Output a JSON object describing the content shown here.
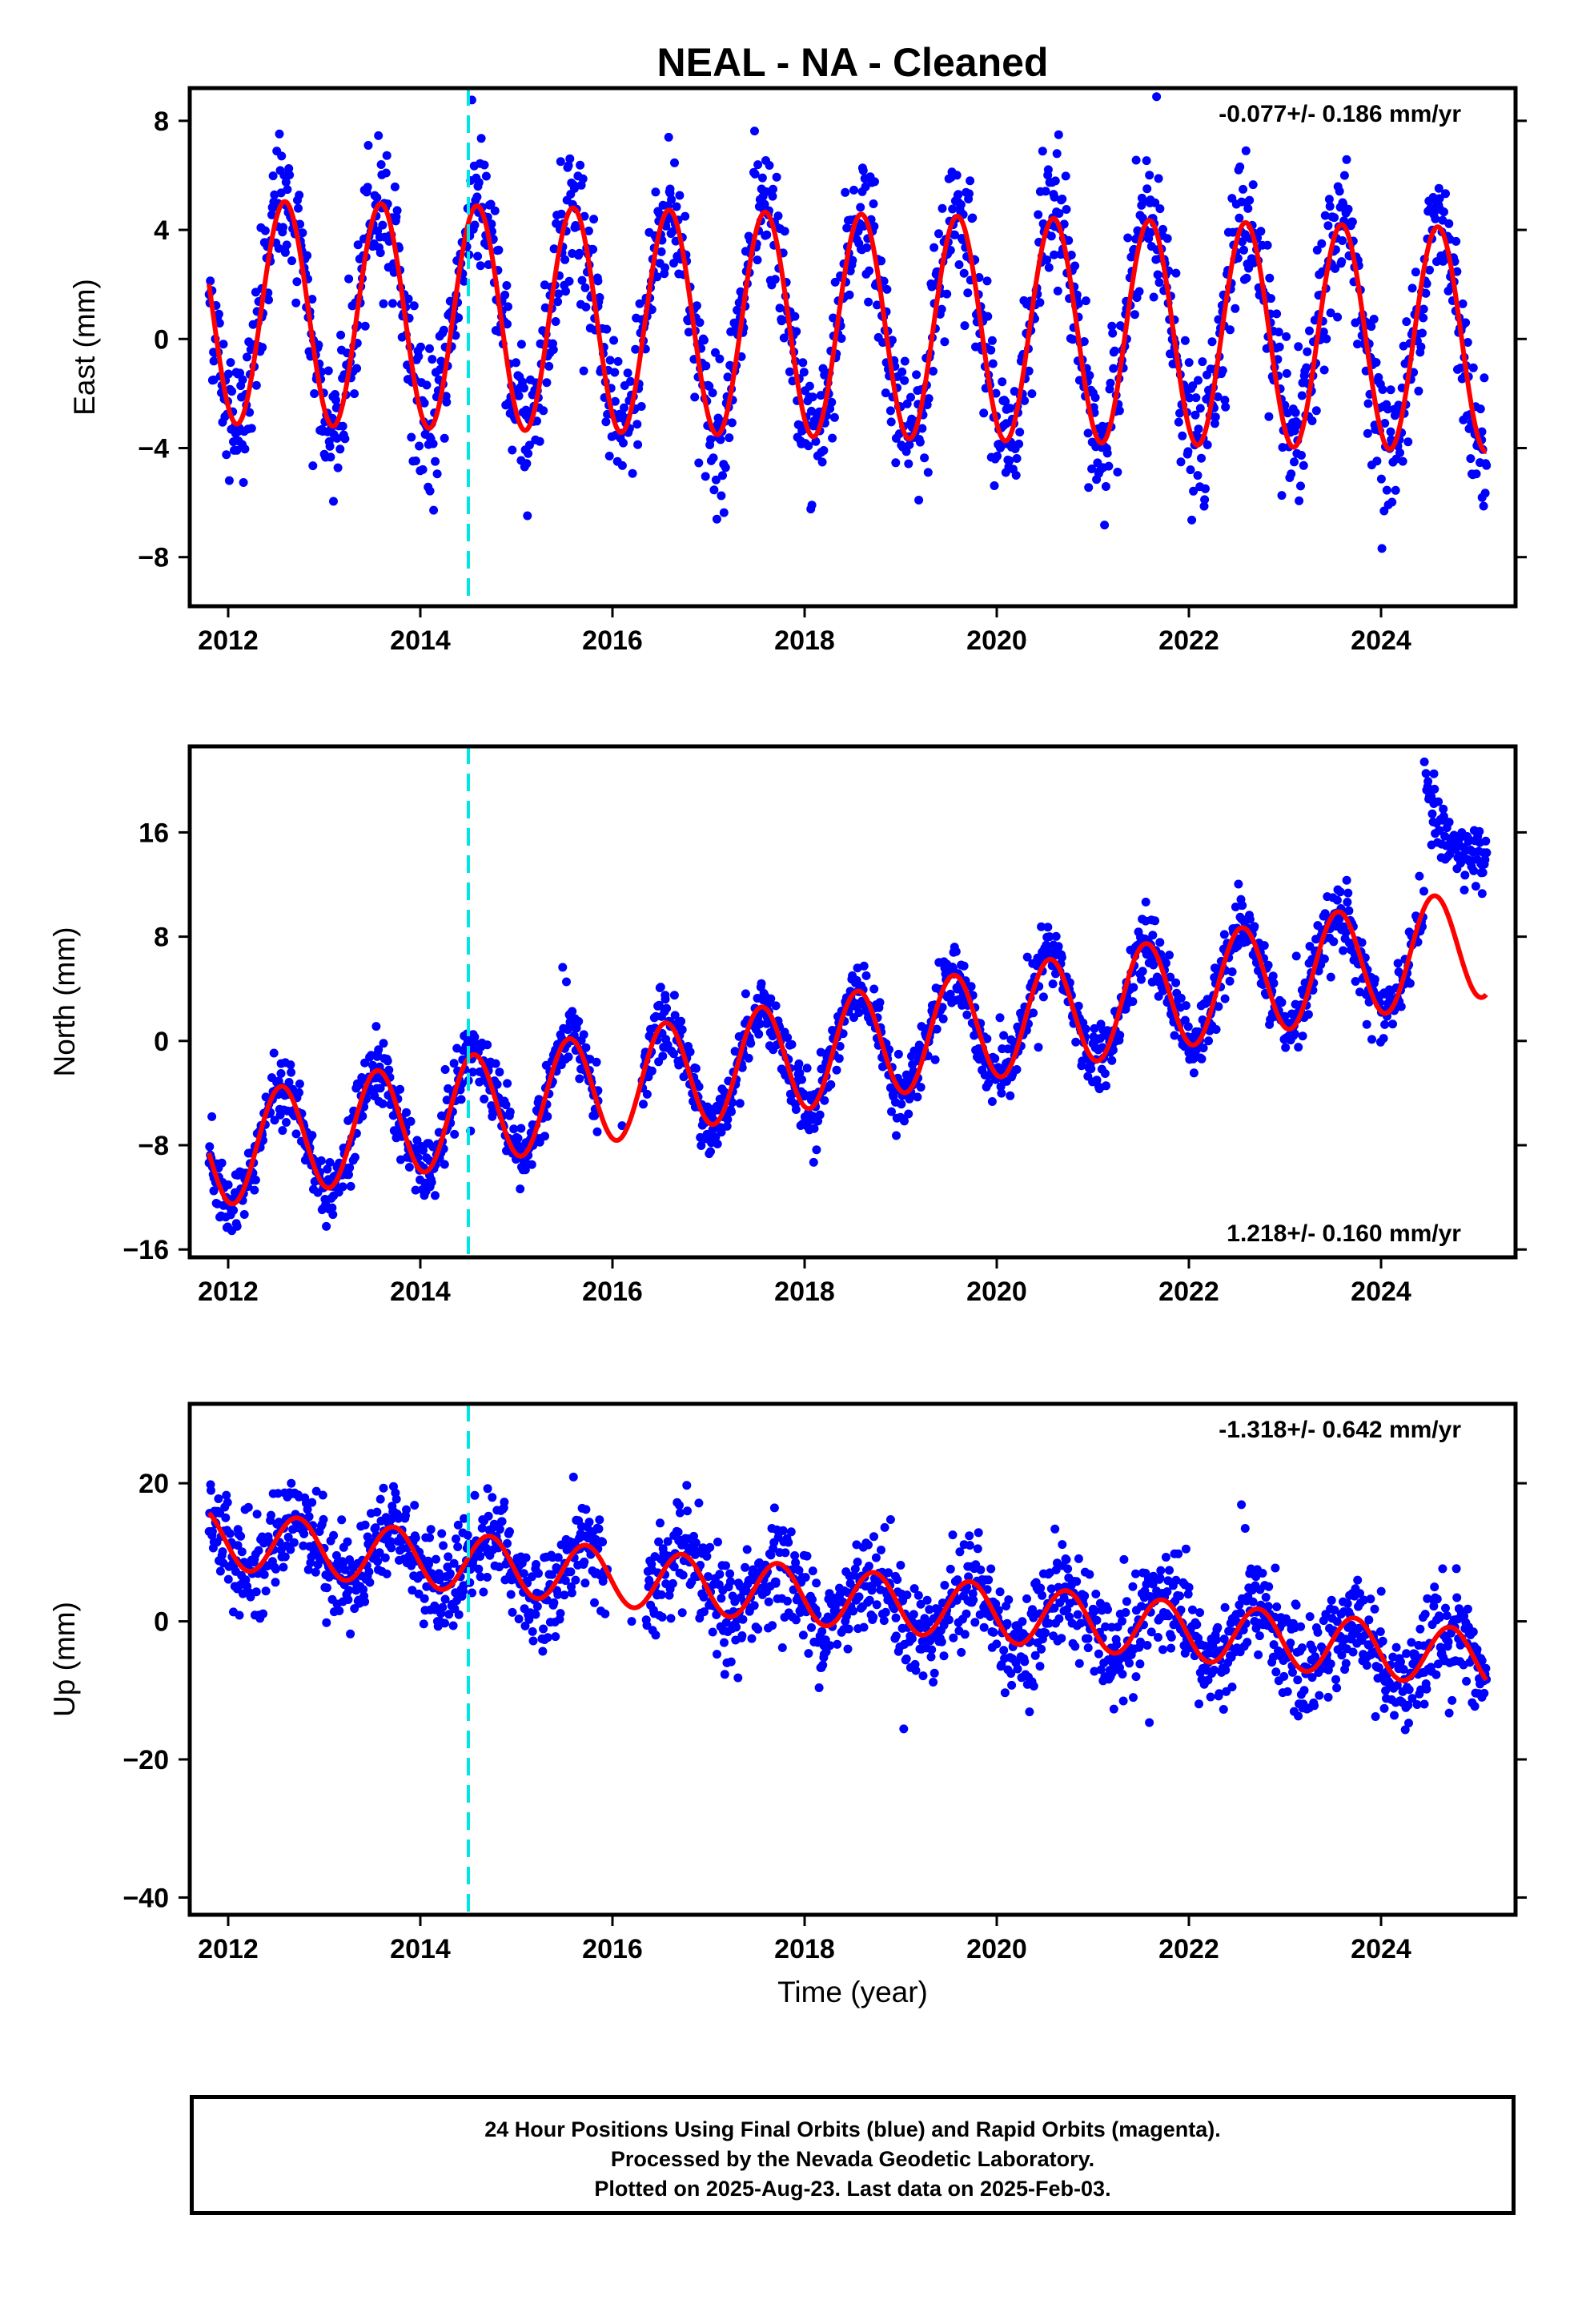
{
  "figure": {
    "title": "NEAL  - NA - Cleaned",
    "xlabel": "Time (year)",
    "x_ticks": [
      2012,
      2014,
      2016,
      2018,
      2020,
      2022,
      2024
    ],
    "colors": {
      "points": "#0000ff",
      "fit": "#ff0000",
      "event_line": "#00e5e5"
    }
  },
  "chart_data": [
    {
      "type": "scatter",
      "ylabel": "East (mm)",
      "rate_label": "-0.077+/- 0.186 mm/yr",
      "rate_position": "top-right",
      "xlim": [
        2011.6,
        2025.4
      ],
      "ylim": [
        -9.8,
        9.2
      ],
      "y_ticks": [
        -8,
        -4,
        0,
        4,
        8
      ],
      "event_line_x": 2014.5,
      "data_range": [
        2011.8,
        2025.1
      ],
      "fit": {
        "offset": 1.0,
        "trend": -0.077,
        "amplitude": 4.1,
        "phase_year": 0.59
      },
      "series": [
        {
          "values": [
            [
              2011.85,
              -1.5
            ],
            [
              2012.1,
              -3.4
            ],
            [
              2012.35,
              0.8
            ],
            [
              2012.6,
              4.9
            ],
            [
              2012.85,
              1.0
            ],
            [
              2013.1,
              -3.5
            ],
            [
              2013.35,
              0.5
            ],
            [
              2013.6,
              4.8
            ],
            [
              2013.85,
              0.8
            ],
            [
              2014.1,
              -3.6
            ],
            [
              2014.35,
              0.9
            ],
            [
              2014.6,
              5.6
            ],
            [
              2014.85,
              1.4
            ],
            [
              2015.1,
              -2.8
            ],
            [
              2015.35,
              1.6
            ],
            [
              2015.6,
              5.6
            ],
            [
              2015.85,
              1.2
            ],
            [
              2016.1,
              -2.9
            ],
            [
              2016.35,
              1.5
            ],
            [
              2016.6,
              5.5
            ],
            [
              2016.85,
              1.1
            ],
            [
              2017.1,
              -2.9
            ],
            [
              2017.35,
              1.5
            ],
            [
              2017.6,
              5.4
            ],
            [
              2017.85,
              1.0
            ],
            [
              2018.1,
              -3.0
            ],
            [
              2018.35,
              1.4
            ],
            [
              2018.6,
              5.4
            ],
            [
              2018.85,
              1.0
            ],
            [
              2019.1,
              -3.1
            ],
            [
              2019.35,
              1.3
            ],
            [
              2019.6,
              5.3
            ],
            [
              2019.85,
              0.9
            ],
            [
              2020.1,
              -3.1
            ],
            [
              2020.35,
              1.2
            ],
            [
              2020.6,
              5.2
            ],
            [
              2020.85,
              0.8
            ],
            [
              2021.1,
              -3.2
            ],
            [
              2021.35,
              1.1
            ],
            [
              2021.6,
              5.1
            ],
            [
              2021.85,
              0.7
            ],
            [
              2022.1,
              -3.3
            ],
            [
              2022.35,
              1.0
            ],
            [
              2022.6,
              5.0
            ],
            [
              2022.85,
              0.6
            ],
            [
              2023.1,
              -3.3
            ],
            [
              2023.35,
              0.9
            ],
            [
              2023.6,
              5.0
            ],
            [
              2023.85,
              0.6
            ],
            [
              2024.1,
              -3.4
            ],
            [
              2024.35,
              0.9
            ],
            [
              2024.6,
              4.9
            ],
            [
              2024.85,
              0.5
            ],
            [
              2025.05,
              -3.4
            ]
          ]
        }
      ]
    },
    {
      "type": "scatter",
      "ylabel": "North (mm)",
      "rate_label": "1.218+/- 0.160 mm/yr",
      "rate_position": "bottom-right",
      "xlim": [
        2011.6,
        2025.4
      ],
      "ylim": [
        -16.6,
        22.6
      ],
      "y_ticks": [
        -16,
        -8,
        0,
        8,
        16
      ],
      "event_line_x": 2014.5,
      "data_range": [
        2011.8,
        2025.1
      ],
      "fit": {
        "offset": -8.6,
        "trend": 1.218,
        "amplitude": 4.2,
        "phase_year": 0.55,
        "step_at": 2024.45,
        "step_size": 8.0,
        "step_decay_years": 0.5
      },
      "series": [
        {
          "values": [
            [
              2011.85,
              -11.5
            ],
            [
              2012.1,
              -10.3
            ],
            [
              2012.35,
              -7.0
            ],
            [
              2012.55,
              -2.5
            ],
            [
              2012.85,
              -8.2
            ],
            [
              2013.1,
              -10.4
            ],
            [
              2013.35,
              -5.5
            ],
            [
              2013.55,
              -1.2
            ],
            [
              2013.85,
              -7.0
            ],
            [
              2014.1,
              -9.2
            ],
            [
              2014.35,
              -4.0
            ],
            [
              2014.55,
              0.5
            ],
            [
              2014.85,
              -5.8
            ],
            [
              2015.1,
              -7.8
            ],
            [
              2015.35,
              -2.8
            ],
            [
              2015.55,
              2.0
            ],
            [
              2015.85,
              -4.6
            ],
            [
              2016.1,
              -6.5
            ],
            [
              2016.35,
              -1.5
            ],
            [
              2016.55,
              3.2
            ],
            [
              2016.85,
              -3.3
            ],
            [
              2017.1,
              -5.3
            ],
            [
              2017.35,
              -0.3
            ],
            [
              2017.55,
              4.4
            ],
            [
              2017.85,
              -2.1
            ],
            [
              2018.1,
              -4.1
            ],
            [
              2018.35,
              0.9
            ],
            [
              2018.55,
              5.6
            ],
            [
              2018.85,
              -0.9
            ],
            [
              2019.1,
              -2.9
            ],
            [
              2019.35,
              2.1
            ],
            [
              2019.55,
              6.8
            ],
            [
              2019.85,
              0.3
            ],
            [
              2020.1,
              -1.7
            ],
            [
              2020.35,
              3.3
            ],
            [
              2020.55,
              8.0
            ],
            [
              2020.85,
              1.5
            ],
            [
              2021.1,
              -0.5
            ],
            [
              2021.35,
              4.5
            ],
            [
              2021.55,
              9.2
            ],
            [
              2021.85,
              2.8
            ],
            [
              2022.1,
              0.7
            ],
            [
              2022.35,
              5.7
            ],
            [
              2022.55,
              10.4
            ],
            [
              2022.85,
              4.0
            ],
            [
              2023.1,
              1.9
            ],
            [
              2023.35,
              6.9
            ],
            [
              2023.55,
              11.6
            ],
            [
              2023.85,
              5.2
            ],
            [
              2024.1,
              3.1
            ],
            [
              2024.35,
              8.1
            ],
            [
              2024.55,
              20.5
            ],
            [
              2024.85,
              14.2
            ],
            [
              2025.05,
              13.5
            ]
          ]
        }
      ]
    },
    {
      "type": "scatter",
      "ylabel": "Up (mm)",
      "rate_label": "-1.318+/- 0.642 mm/yr",
      "rate_position": "top-right",
      "xlim": [
        2011.6,
        2025.4
      ],
      "ylim": [
        -42.5,
        31.5
      ],
      "y_ticks": [
        -40,
        -20,
        0,
        20
      ],
      "event_line_x": 2014.5,
      "data_range": [
        2011.8,
        2025.1
      ],
      "fit": {
        "offset": 12.0,
        "trend": -1.318,
        "amplitude": 4.2,
        "phase_year": 0.72
      },
      "series": [
        {
          "values": [
            [
              2011.85,
              15.5
            ],
            [
              2012.1,
              11.0
            ],
            [
              2012.35,
              8.0
            ],
            [
              2012.7,
              15.5
            ],
            [
              2012.95,
              13.0
            ],
            [
              2013.2,
              8.5
            ],
            [
              2013.45,
              6.5
            ],
            [
              2013.7,
              14.8
            ],
            [
              2013.95,
              10.5
            ],
            [
              2014.2,
              6.0
            ],
            [
              2014.45,
              5.2
            ],
            [
              2014.7,
              10.0
            ],
            [
              2014.95,
              6.0
            ],
            [
              2015.2,
              1.0
            ],
            [
              2015.45,
              0.3
            ],
            [
              2015.7,
              8.5
            ],
            [
              2016.2,
              0.0
            ],
            [
              2016.45,
              -2.0
            ],
            [
              2016.7,
              7.0
            ],
            [
              2016.95,
              3.5
            ],
            [
              2017.2,
              -1.5
            ],
            [
              2017.45,
              -2.5
            ],
            [
              2017.7,
              5.5
            ],
            [
              2017.95,
              1.5
            ],
            [
              2018.2,
              -3.5
            ],
            [
              2018.45,
              -4.0
            ],
            [
              2018.7,
              4.5
            ],
            [
              2018.95,
              0.5
            ],
            [
              2019.2,
              -4.0
            ],
            [
              2019.45,
              -5.0
            ],
            [
              2019.7,
              3.0
            ],
            [
              2019.95,
              -1.5
            ],
            [
              2020.2,
              -6.0
            ],
            [
              2020.45,
              -6.5
            ],
            [
              2020.7,
              1.5
            ],
            [
              2020.95,
              -2.5
            ],
            [
              2021.2,
              -7.5
            ],
            [
              2021.45,
              -8.0
            ],
            [
              2021.7,
              0.5
            ],
            [
              2021.95,
              -3.5
            ],
            [
              2022.2,
              -8.5
            ],
            [
              2022.45,
              -9.5
            ],
            [
              2022.7,
              -1.0
            ],
            [
              2022.95,
              -5.0
            ],
            [
              2023.2,
              -10.0
            ],
            [
              2023.45,
              -11.0
            ],
            [
              2023.7,
              -2.0
            ],
            [
              2023.95,
              -6.5
            ],
            [
              2024.2,
              -11.5
            ],
            [
              2024.45,
              -12.0
            ],
            [
              2024.7,
              -3.0
            ],
            [
              2025.05,
              -11.0
            ]
          ]
        }
      ]
    }
  ],
  "footer": {
    "line1": "24 Hour Positions Using Final Orbits (blue) and Rapid Orbits (magenta).",
    "line2": "Processed by the Nevada Geodetic Laboratory.",
    "line3": "Plotted on 2025-Aug-23. Last data on 2025-Feb-03."
  }
}
